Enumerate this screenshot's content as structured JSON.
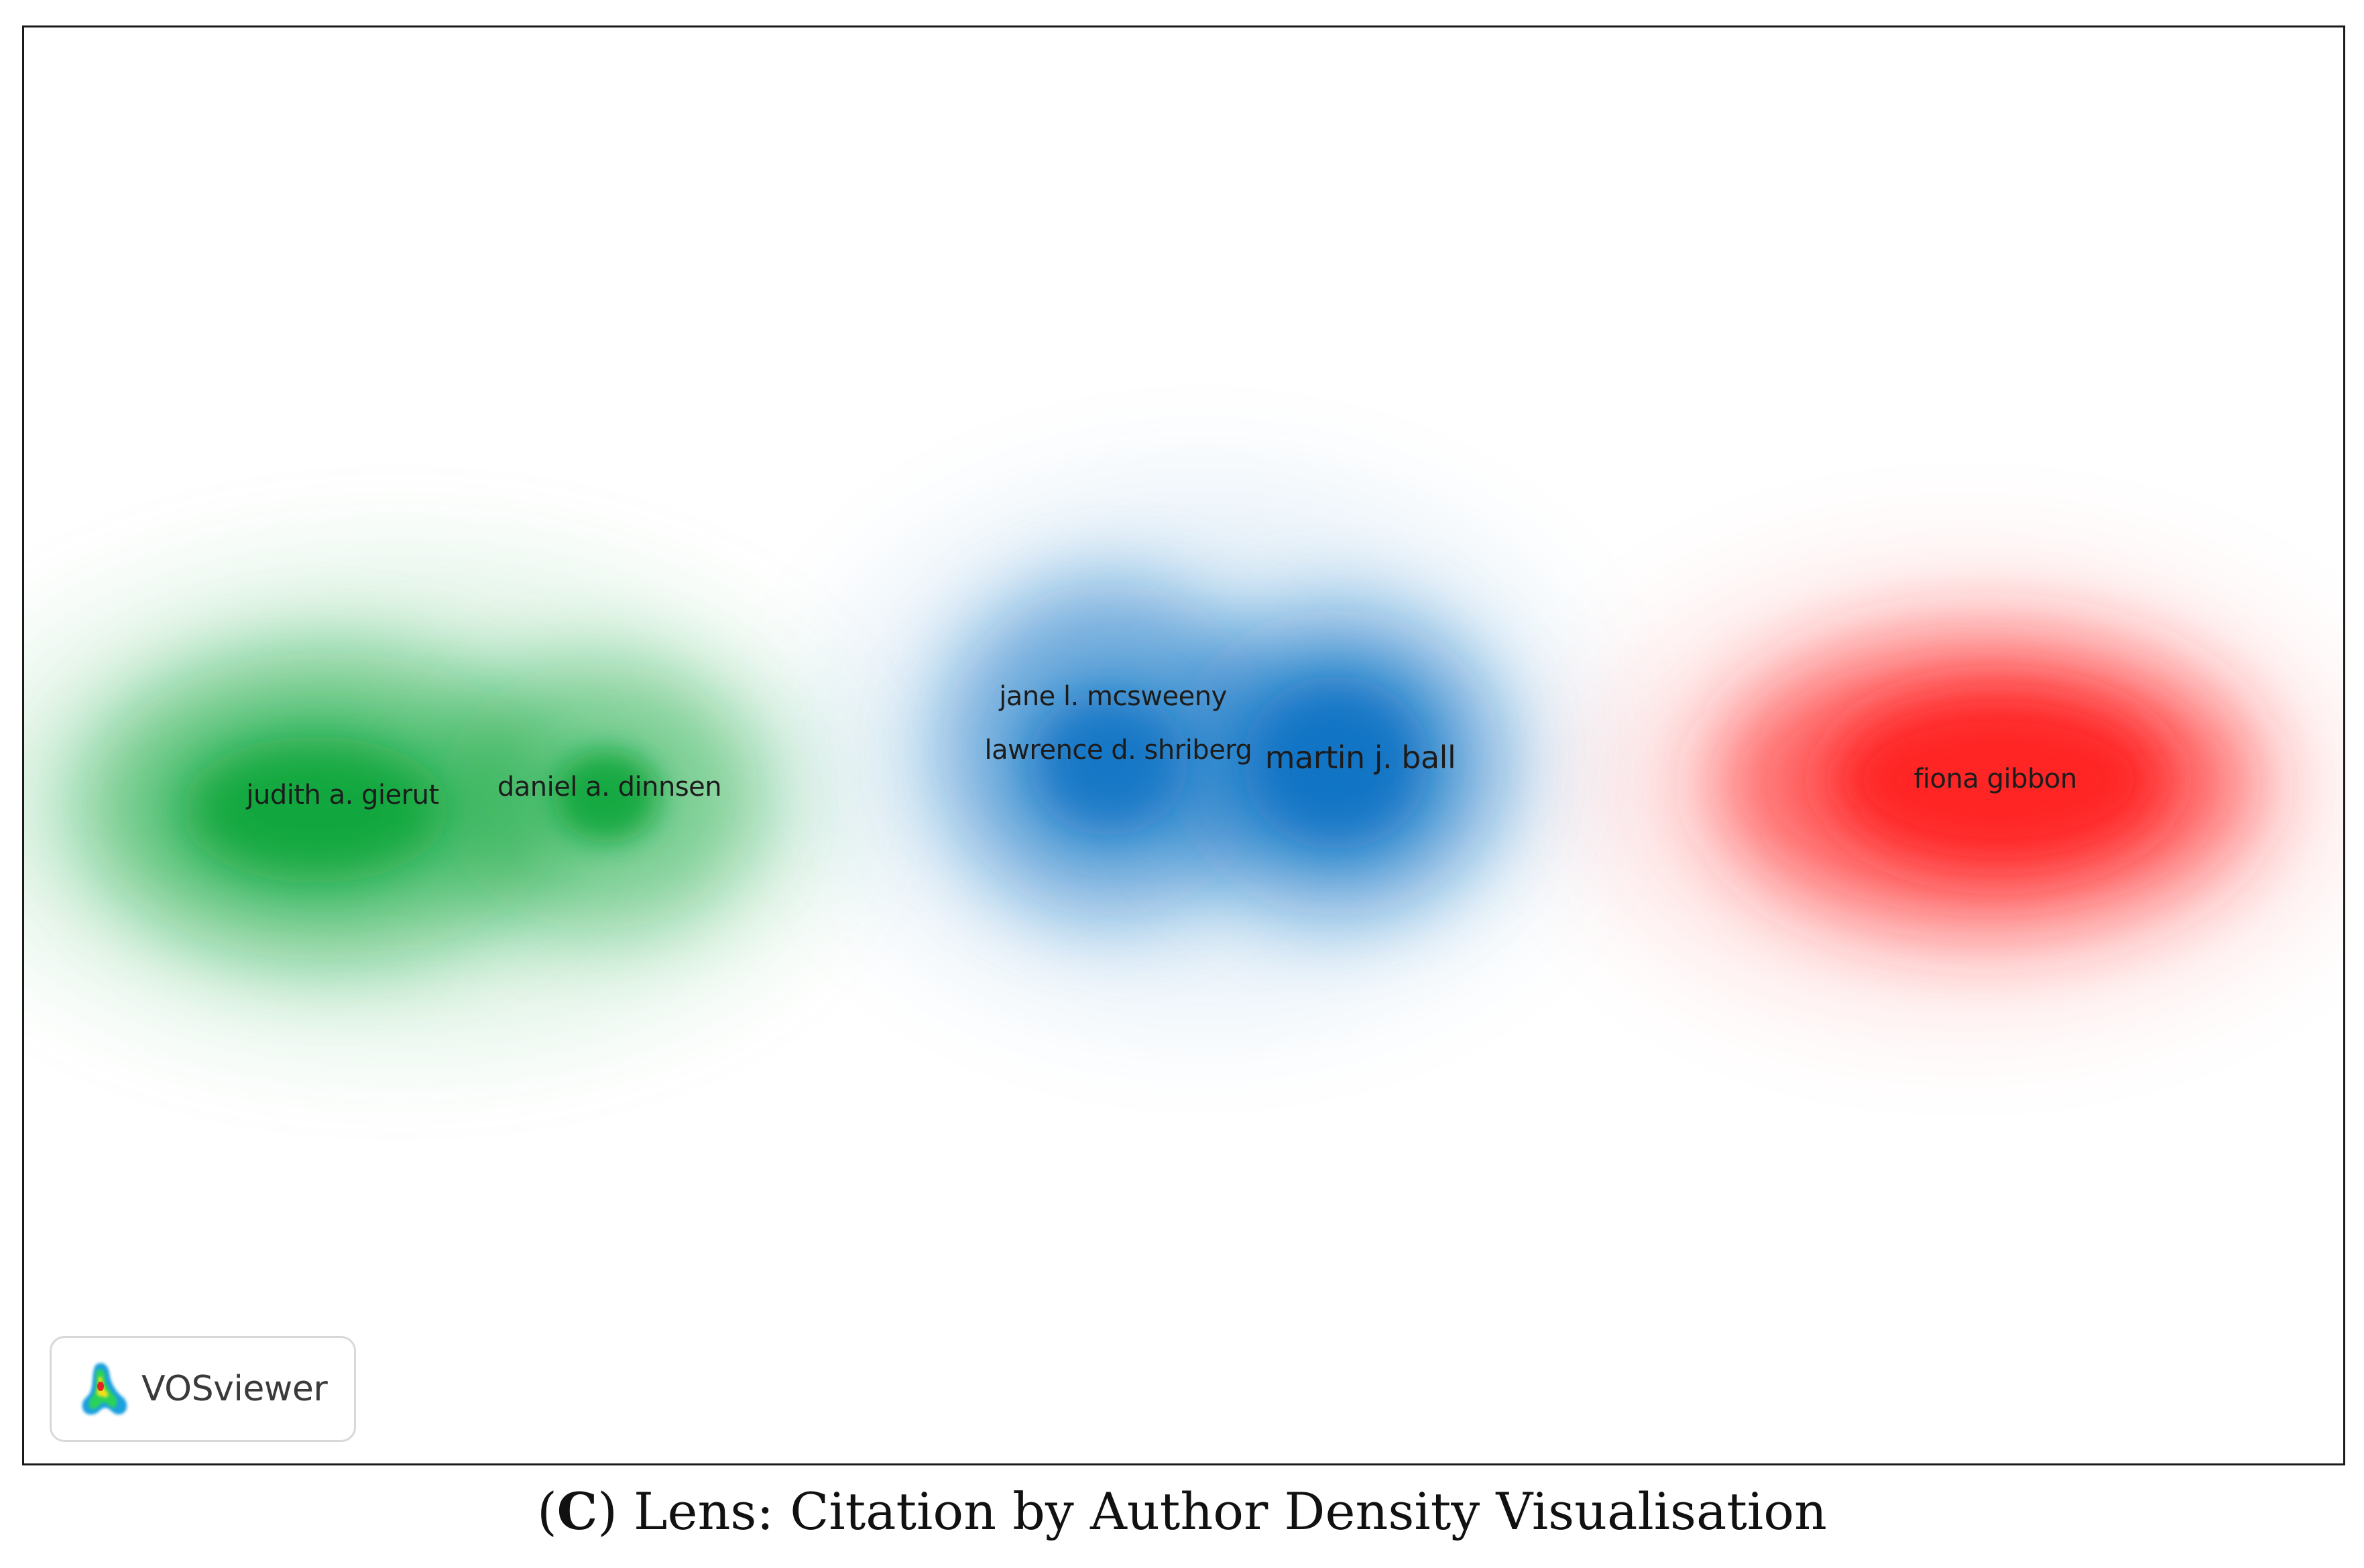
{
  "visualization": {
    "tool": "VOSviewer",
    "type": "density",
    "clusters": [
      {
        "color": "#0fa63a",
        "authors": [
          "judith a. gierut",
          "daniel a. dinnsen"
        ]
      },
      {
        "color": "#0a72c4",
        "authors": [
          "jane l. mcsweeny",
          "lawrence d. shriberg",
          "martin j. ball"
        ]
      },
      {
        "color": "#ff2020",
        "authors": [
          "fiona gibbon"
        ]
      }
    ]
  },
  "labels": {
    "judith": "judith a. gierut",
    "daniel": "daniel a. dinnsen",
    "jane": "jane l. mcsweeny",
    "lawrence": "lawrence d. shriberg",
    "martin": "martin j. ball",
    "fiona": "fiona gibbon"
  },
  "logo": {
    "text": "VOSviewer",
    "icon": "vosviewer-logo-icon"
  },
  "caption": {
    "open": "(",
    "letter": "C",
    "rest": ") Lens: Citation by Author Density Visualisation"
  },
  "colors": {
    "green": "#0fa63a",
    "blue": "#0a72c4",
    "red": "#ff2020"
  }
}
